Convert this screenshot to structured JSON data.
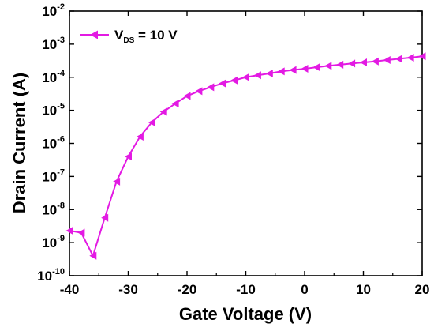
{
  "chart_data": {
    "type": "line",
    "title": "",
    "xlabel": "Gate Voltage (V)",
    "ylabel": "Drain Current (A)",
    "xlim": [
      -40,
      20
    ],
    "ylim": [
      1e-10,
      0.01
    ],
    "yscale": "log",
    "grid": false,
    "legend_position": "top-left",
    "x_ticks": [
      "-40",
      "-30",
      "-20",
      "-10",
      "0",
      "10",
      "20"
    ],
    "x_tick_values": [
      -40,
      -30,
      -20,
      -10,
      0,
      10,
      20
    ],
    "y_ticks": [
      {
        "base": "10",
        "exp": "-10",
        "value": 1e-10
      },
      {
        "base": "10",
        "exp": "-9",
        "value": 1e-09
      },
      {
        "base": "10",
        "exp": "-8",
        "value": 1e-08
      },
      {
        "base": "10",
        "exp": "-7",
        "value": 1e-07
      },
      {
        "base": "10",
        "exp": "-6",
        "value": 1e-06
      },
      {
        "base": "10",
        "exp": "-5",
        "value": 1e-05
      },
      {
        "base": "10",
        "exp": "-4",
        "value": 0.0001
      },
      {
        "base": "10",
        "exp": "-3",
        "value": 0.001
      },
      {
        "base": "10",
        "exp": "-2",
        "value": 0.01
      }
    ],
    "legend": {
      "main": "V",
      "sub": "DS",
      "rest": " = 10 V"
    },
    "series": [
      {
        "name": "VDS = 10 V",
        "color": "#e31ae3",
        "marker": "left-triangle",
        "x": [
          -40,
          -38,
          -36,
          -34,
          -32,
          -30,
          -28,
          -26,
          -24,
          -22,
          -20,
          -18,
          -16,
          -14,
          -12,
          -10,
          -8,
          -6,
          -4,
          -2,
          0,
          2,
          4,
          6,
          8,
          10,
          12,
          14,
          16,
          18,
          20
        ],
        "y": [
          2.3e-09,
          2e-09,
          4e-10,
          5.6e-09,
          7e-08,
          4e-07,
          1.6e-06,
          4.3e-06,
          9e-06,
          1.6e-05,
          2.7e-05,
          3.8e-05,
          5e-05,
          6.5e-05,
          8e-05,
          0.0001,
          0.000115,
          0.00013,
          0.00015,
          0.000165,
          0.00018,
          0.0002,
          0.00022,
          0.00024,
          0.00026,
          0.00028,
          0.0003,
          0.00033,
          0.00036,
          0.00039,
          0.00043
        ]
      }
    ]
  }
}
